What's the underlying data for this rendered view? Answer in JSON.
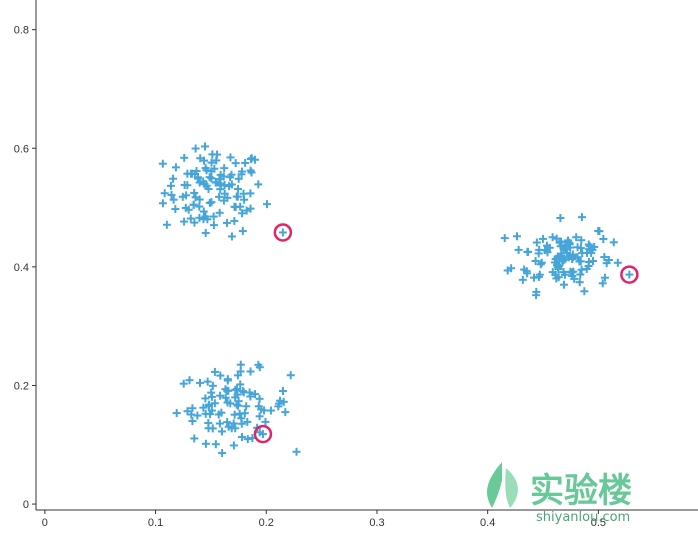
{
  "chart_data": {
    "type": "scatter",
    "title": "",
    "xlabel": "",
    "ylabel": "",
    "xlim": [
      -0.008,
      0.59
    ],
    "ylim": [
      -0.01,
      0.85
    ],
    "xticks": [
      0,
      0.1,
      0.2,
      0.3,
      0.4,
      0.5
    ],
    "xtick_labels": [
      "0",
      "0.1",
      "0.2",
      "0.3",
      "0.4",
      "0.5"
    ],
    "yticks": [
      0,
      0.2,
      0.4,
      0.6,
      0.8
    ],
    "ytick_labels": [
      "0",
      "0.2",
      "0.4",
      "0.6",
      "0.8"
    ],
    "grid": false,
    "marker": "plus",
    "series_color": "#46a5d8",
    "highlight_color": "#e0256a",
    "clusters": [
      {
        "center": [
          0.153,
          0.527
        ],
        "spread": [
          0.03,
          0.05
        ],
        "count": 110,
        "x_range": [
          0.088,
          0.225
        ],
        "y_range": [
          0.43,
          0.605
        ]
      },
      {
        "center": [
          0.467,
          0.418
        ],
        "spread": [
          0.03,
          0.038
        ],
        "count": 110,
        "x_range": [
          0.398,
          0.525
        ],
        "y_range": [
          0.34,
          0.495
        ]
      },
      {
        "center": [
          0.17,
          0.165
        ],
        "spread": [
          0.034,
          0.04
        ],
        "count": 95,
        "x_range": [
          0.103,
          0.237
        ],
        "y_range": [
          0.085,
          0.252
        ]
      }
    ],
    "highlighted_points": [
      {
        "x": 0.215,
        "y": 0.458
      },
      {
        "x": 0.528,
        "y": 0.387
      },
      {
        "x": 0.197,
        "y": 0.118
      }
    ]
  },
  "watermark": {
    "text": "实验楼",
    "subtext": "shiyanlou.com",
    "color": "#4fbf85"
  }
}
